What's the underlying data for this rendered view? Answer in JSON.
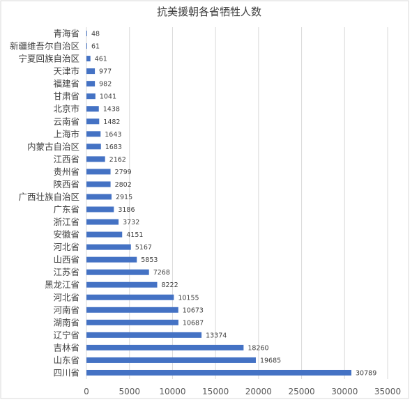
{
  "chart_data": {
    "type": "bar",
    "orientation": "horizontal",
    "title": "抗美援朝各省牺牲人数",
    "categories": [
      "青海省",
      "新疆维吾尔自治区",
      "宁夏回族自治区",
      "天津市",
      "福建省",
      "甘肃省",
      "北京市",
      "云南省",
      "上海市",
      "内蒙古自治区",
      "江西省",
      "贵州省",
      "陕西省",
      "广西壮族自治区",
      "广东省",
      "浙江省",
      "安徽省",
      "河北省",
      "山西省",
      "江苏省",
      "黑龙江省",
      "河北省",
      "河南省",
      "湖南省",
      "辽宁省",
      "吉林省",
      "山东省",
      "四川省"
    ],
    "values": [
      48,
      61,
      461,
      977,
      982,
      1041,
      1438,
      1482,
      1643,
      1683,
      2162,
      2799,
      2802,
      2915,
      3186,
      3732,
      4151,
      5167,
      5853,
      7268,
      8222,
      10155,
      10673,
      10687,
      13374,
      18260,
      19685,
      30789
    ],
    "xlim": [
      0,
      35000
    ],
    "xticks": [
      0,
      5000,
      10000,
      15000,
      20000,
      25000,
      30000,
      35000
    ],
    "grid": "vertical",
    "bar_color": "#4472c4",
    "data_labels": true
  }
}
